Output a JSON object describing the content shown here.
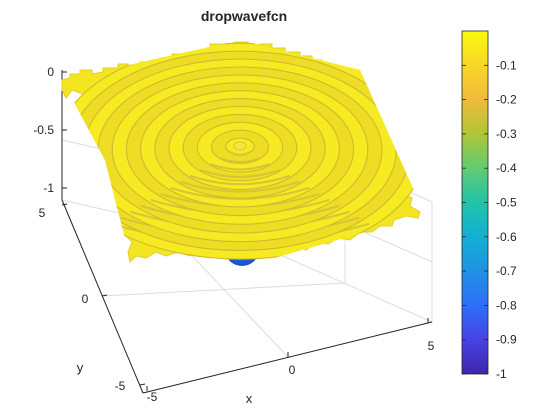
{
  "chart_data": {
    "type": "surface",
    "title": "dropwavefcn",
    "xlabel": "x",
    "ylabel": "y",
    "zlabel": "",
    "function": "dropwavefcn",
    "xlim": [
      -5,
      5
    ],
    "ylim": [
      -5,
      5
    ],
    "zlim": [
      -1,
      0
    ],
    "x_ticks": [
      -5,
      0,
      5
    ],
    "y_ticks": [
      -5,
      0,
      5
    ],
    "z_ticks": [
      -1,
      -0.5,
      0
    ],
    "x_tick_labels": [
      "-5",
      "0",
      "5"
    ],
    "y_tick_labels": [
      "-5",
      "0",
      "5"
    ],
    "z_tick_labels": [
      "-1",
      "-0.5",
      "0"
    ],
    "colormap": "parula",
    "clim": [
      -1,
      -0.0
    ],
    "colorbar": {
      "location": "right",
      "ticks": [
        -1,
        -0.9,
        -0.8,
        -0.7,
        -0.6,
        -0.5,
        -0.4,
        -0.3,
        -0.2,
        -0.1
      ],
      "tick_labels": [
        "-1",
        "-0.9",
        "-0.8",
        "-0.7",
        "-0.6",
        "-0.5",
        "-0.4",
        "-0.3",
        "-0.2",
        "-0.1"
      ]
    },
    "grid": true,
    "colors": {
      "high": "#f9fb0e",
      "low": "#3e26a8",
      "surface_yellow": "#f4e41c",
      "surface_shade": "#e8d53a"
    }
  }
}
